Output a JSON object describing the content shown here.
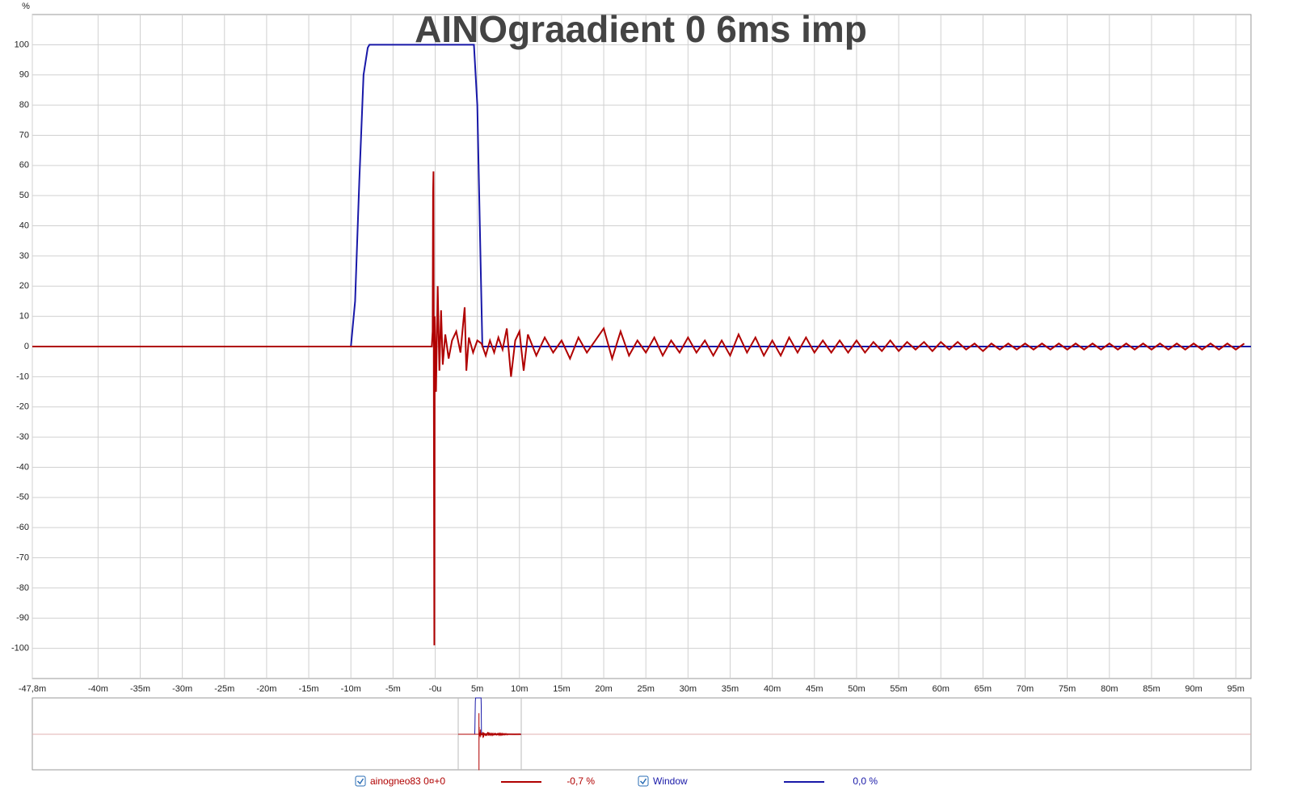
{
  "chart_data": {
    "type": "line",
    "title": "AINOgraadient 0 6ms imp",
    "ylabel": "%",
    "xlim": [
      -47.8,
      96.8
    ],
    "ylim": [
      -110,
      110
    ],
    "xticks": [
      {
        "value": -47.8,
        "label": "-47,8m"
      },
      {
        "value": -40,
        "label": "-40m"
      },
      {
        "value": -35,
        "label": "-35m"
      },
      {
        "value": -30,
        "label": "-30m"
      },
      {
        "value": -25,
        "label": "-25m"
      },
      {
        "value": -20,
        "label": "-20m"
      },
      {
        "value": -15,
        "label": "-15m"
      },
      {
        "value": -10,
        "label": "-10m"
      },
      {
        "value": -5,
        "label": "-5m"
      },
      {
        "value": 0,
        "label": "-0u"
      },
      {
        "value": 5,
        "label": "5m"
      },
      {
        "value": 10,
        "label": "10m"
      },
      {
        "value": 15,
        "label": "15m"
      },
      {
        "value": 20,
        "label": "20m"
      },
      {
        "value": 25,
        "label": "25m"
      },
      {
        "value": 30,
        "label": "30m"
      },
      {
        "value": 35,
        "label": "35m"
      },
      {
        "value": 40,
        "label": "40m"
      },
      {
        "value": 45,
        "label": "45m"
      },
      {
        "value": 50,
        "label": "50m"
      },
      {
        "value": 55,
        "label": "55m"
      },
      {
        "value": 60,
        "label": "60m"
      },
      {
        "value": 65,
        "label": "65m"
      },
      {
        "value": 70,
        "label": "70m"
      },
      {
        "value": 75,
        "label": "75m"
      },
      {
        "value": 80,
        "label": "80m"
      },
      {
        "value": 85,
        "label": "85m"
      },
      {
        "value": 90,
        "label": "90m"
      },
      {
        "value": 95,
        "label": "95m"
      }
    ],
    "yticks": [
      100,
      90,
      80,
      70,
      60,
      50,
      40,
      30,
      20,
      10,
      0,
      -10,
      -20,
      -30,
      -40,
      -50,
      -60,
      -70,
      -80,
      -90,
      -100
    ],
    "grid": true,
    "series": [
      {
        "name": "ainogneo83 0¤+0",
        "readout": "-0,7 %",
        "color": "#b00000",
        "x": [
          -47.8,
          -0.4,
          -0.3,
          -0.25,
          -0.2,
          -0.15,
          -0.1,
          -0.05,
          0.1,
          0.3,
          0.5,
          0.7,
          0.9,
          1.2,
          1.6,
          2.0,
          2.5,
          3.0,
          3.5,
          3.7,
          4.0,
          4.5,
          5.0,
          5.5,
          6.0,
          6.5,
          7.0,
          7.5,
          8.0,
          8.5,
          9.0,
          9.5,
          10.0,
          10.5,
          11,
          12,
          13,
          14,
          15,
          16,
          17,
          18,
          19,
          20,
          21,
          22,
          23,
          24,
          25,
          26,
          27,
          28,
          29,
          30,
          31,
          32,
          33,
          34,
          35,
          36,
          37,
          38,
          39,
          40,
          41,
          42,
          43,
          44,
          45,
          46,
          47,
          48,
          49,
          50,
          51,
          52,
          53,
          54,
          55,
          56,
          57,
          58,
          59,
          60,
          61,
          62,
          63,
          64,
          65,
          66,
          67,
          68,
          69,
          70,
          71,
          72,
          73,
          74,
          75,
          76,
          77,
          78,
          79,
          80,
          81,
          82,
          83,
          84,
          85,
          86,
          87,
          88,
          89,
          90,
          91,
          92,
          93,
          94,
          95,
          96
        ],
        "values": [
          0,
          0,
          5,
          51,
          58,
          -26,
          -99,
          10,
          -15,
          20,
          -8,
          12,
          -6,
          4,
          -4,
          2,
          5,
          -2,
          13,
          -8,
          3,
          -2,
          2,
          1,
          -3,
          2,
          -2,
          3,
          -1,
          6,
          -10,
          2,
          5,
          -8,
          4,
          -3,
          3,
          -2,
          2,
          -4,
          3,
          -2,
          2,
          6,
          -4,
          5,
          -3,
          2,
          -2,
          3,
          -3,
          2,
          -2,
          3,
          -2,
          2,
          -3,
          2,
          -3,
          4,
          -2,
          3,
          -3,
          2,
          -3,
          3,
          -2,
          3,
          -2,
          2,
          -2,
          2,
          -2,
          2,
          -2,
          1.5,
          -1.5,
          2,
          -1.5,
          1.5,
          -1,
          1.5,
          -1.5,
          1.5,
          -1,
          1.5,
          -1,
          1,
          -1.5,
          1,
          -1,
          1,
          -1,
          1,
          -1,
          1,
          -1,
          1,
          -1,
          1,
          -1,
          1,
          -1,
          1,
          -1,
          1,
          -1,
          1,
          -1,
          1,
          -1,
          1,
          -1,
          1,
          -1,
          1,
          -1,
          1,
          -1,
          1
        ]
      },
      {
        "name": "Window",
        "readout": "0,0 %",
        "color": "#1818a8",
        "x": [
          -47.8,
          -10,
          -9.5,
          -9,
          -8.5,
          -8,
          -7.8,
          4.6,
          5.0,
          5.3,
          5.6,
          96.8
        ],
        "values": [
          0,
          0,
          15,
          55,
          90,
          99,
          100,
          100,
          80,
          40,
          0,
          0
        ]
      }
    ]
  }
}
